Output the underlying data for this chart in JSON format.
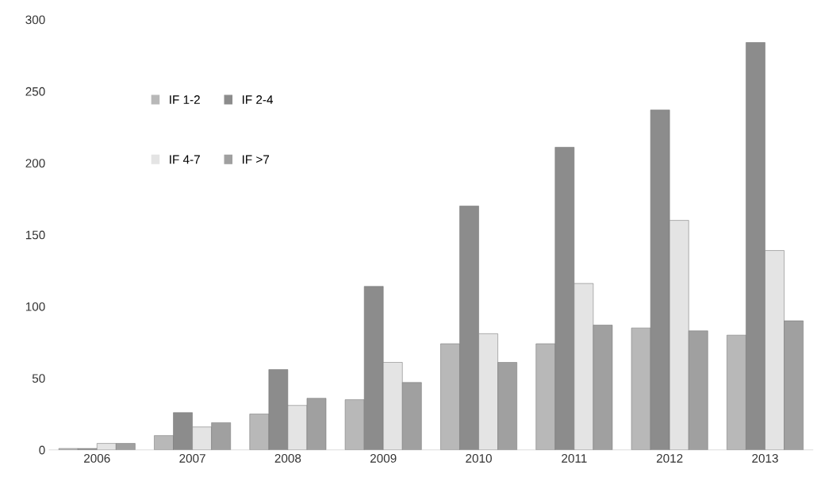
{
  "chart_data": {
    "type": "bar",
    "categories": [
      "2006",
      "2007",
      "2008",
      "2009",
      "2010",
      "2011",
      "2012",
      "2013"
    ],
    "series": [
      {
        "name": "IF 1-2",
        "color": "#b8b8b8",
        "values": [
          1,
          10,
          25,
          35,
          74,
          74,
          85,
          80
        ]
      },
      {
        "name": "IF 2-4",
        "color": "#8c8c8c",
        "values": [
          1,
          26,
          56,
          114,
          170,
          211,
          237,
          284
        ]
      },
      {
        "name": "IF 4-7",
        "color": "#e4e4e4",
        "values": [
          4.5,
          16,
          31,
          61,
          81,
          116,
          160,
          139
        ]
      },
      {
        "name": "IF >7",
        "color": "#a0a0a0",
        "values": [
          4.5,
          19,
          36,
          47,
          61,
          87,
          83,
          90
        ]
      }
    ],
    "ylim": [
      0,
      300
    ],
    "yticks": [
      0,
      50,
      100,
      150,
      200,
      250,
      300
    ],
    "grid": false,
    "legend": "top left"
  }
}
